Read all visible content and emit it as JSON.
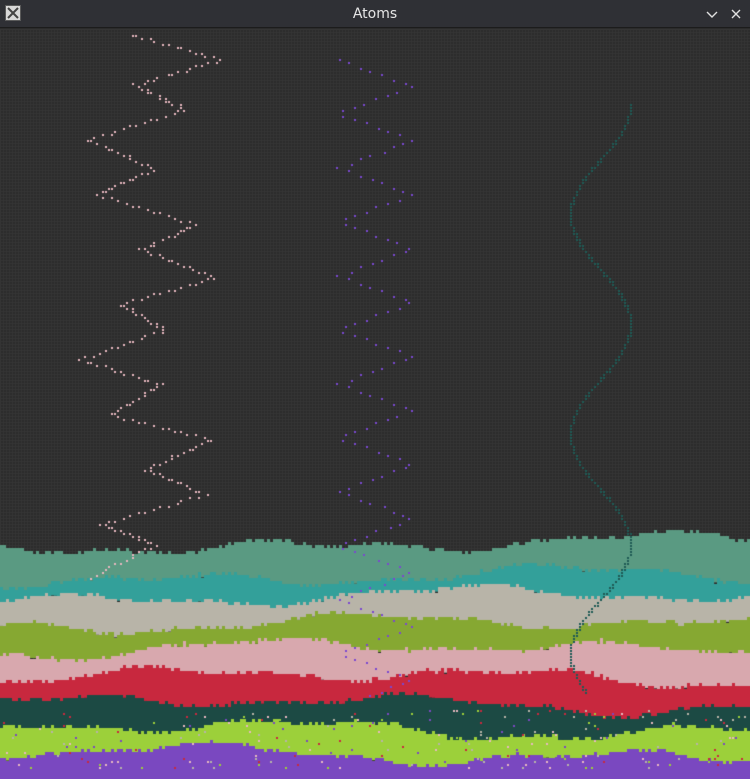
{
  "window": {
    "title": "Atoms",
    "icon": "x-app-icon",
    "controls": [
      "chevron-down-icon",
      "close-icon"
    ]
  },
  "colors": {
    "background": "#2b2b2b",
    "grid": "#353535",
    "titlebar": "#2f3035",
    "strata": [
      "#5a9a82",
      "#33a09a",
      "#b8b4a8",
      "#86a832",
      "#d8a8ae",
      "#c8283e",
      "#1c4a44",
      "#9cd03a",
      "#7a48c0"
    ],
    "particles": {
      "pink": "#e8b8c0",
      "purple": "#7a48d0",
      "teal": "#1e5a55"
    }
  }
}
